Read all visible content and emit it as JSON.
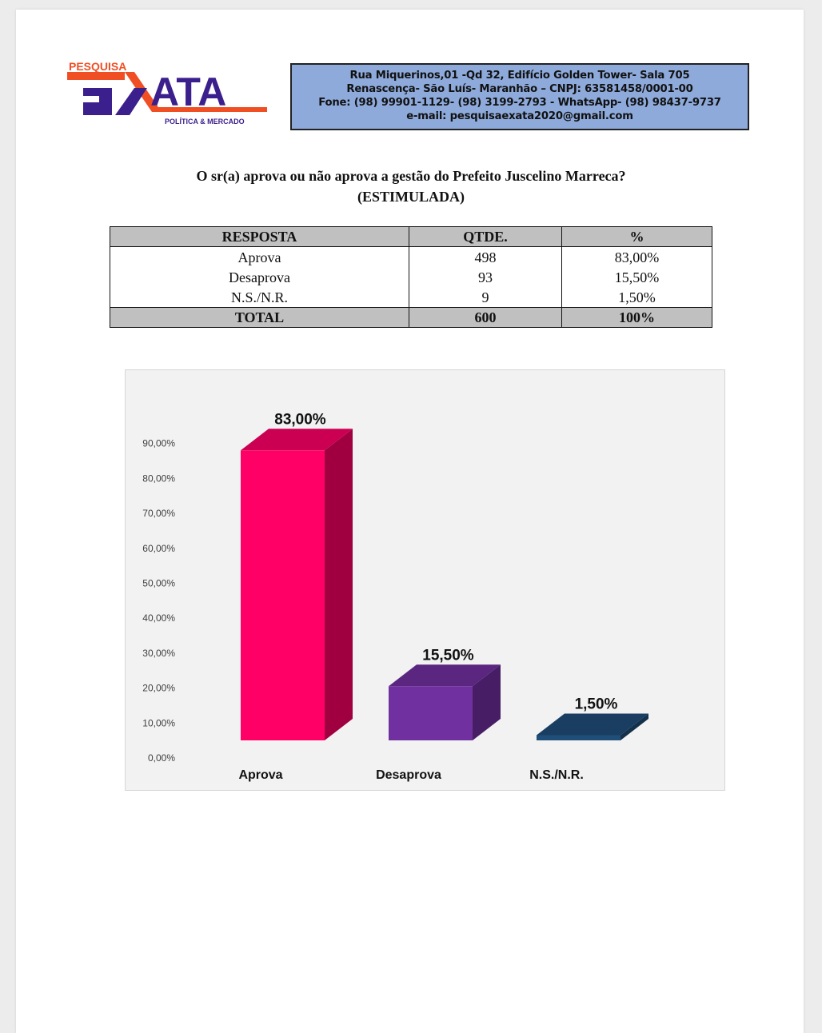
{
  "header": {
    "logo": {
      "top_text": "PESQUISA",
      "main_text": "EXATA",
      "sub_text": "POLÍTICA & MERCADO"
    },
    "info_lines": [
      "Rua Miquerinos,01 -Qd 32,  Edifício Golden Tower- Sala 705",
      "Renascença- São Luís- Maranhão – CNPJ: 63581458/0001-00",
      "Fone: (98) 99901-1129- (98) 3199-2793 - WhatsApp- (98) 98437-9737",
      "e-mail: pesquisaexata2020@gmail.com"
    ]
  },
  "question": {
    "line1": "O sr(a) aprova ou não aprova a gestão do Prefeito Juscelino Marreca?",
    "line2": "(ESTIMULADA)"
  },
  "table": {
    "headers": [
      "RESPOSTA",
      "QTDE.",
      "%"
    ],
    "rows": [
      [
        "Aprova",
        "498",
        "83,00%"
      ],
      [
        "Desaprova",
        "93",
        "15,50%"
      ],
      [
        "N.S./N.R.",
        "9",
        "1,50%"
      ]
    ],
    "total": [
      "TOTAL",
      "600",
      "100%"
    ]
  },
  "chart_data": {
    "type": "bar",
    "style": "3d-column",
    "categories": [
      "Aprova",
      "Desaprova",
      "N.S./N.R."
    ],
    "values": [
      83.0,
      15.5,
      1.5
    ],
    "data_labels": [
      "83,00%",
      "15,50%",
      "1,50%"
    ],
    "colors": [
      "#ff0066",
      "#7030a0",
      "#1f4e79"
    ],
    "ylim": [
      0,
      90
    ],
    "yticks": [
      "0,00%",
      "10,00%",
      "20,00%",
      "30,00%",
      "40,00%",
      "50,00%",
      "60,00%",
      "70,00%",
      "80,00%",
      "90,00%"
    ],
    "grid": false,
    "legend": "none"
  }
}
